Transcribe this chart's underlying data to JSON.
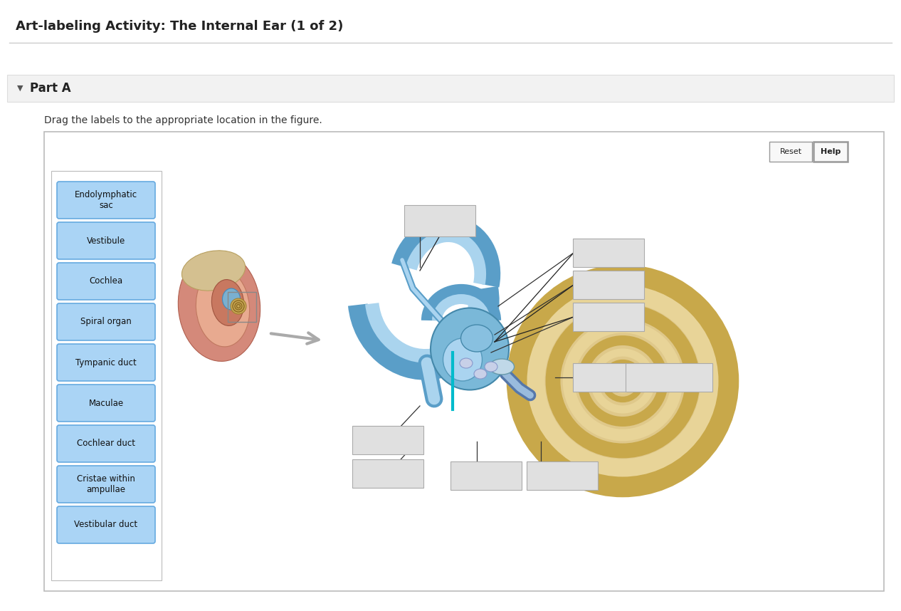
{
  "title": "Art-labeling Activity: The Internal Ear (1 of 2)",
  "part_label": "Part A",
  "instruction": "Drag the labels to the appropriate location in the figure.",
  "bg_color": "#ffffff",
  "label_buttons": [
    "Endolymphatic\nsac",
    "Vestibule",
    "Cochlea",
    "Spiral organ",
    "Tympanic duct",
    "Maculae",
    "Cochlear duct",
    "Cristae within\nampullae",
    "Vestibular duct"
  ],
  "button_color": "#aad4f5",
  "button_edge_color": "#66aae0",
  "title_fontsize": 13,
  "part_fontsize": 12,
  "instr_fontsize": 10,
  "btn_fontsize": 8.5
}
